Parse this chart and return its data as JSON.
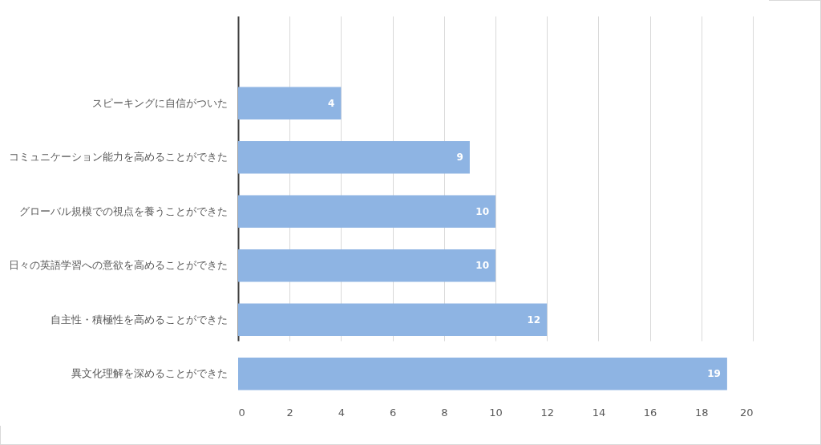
{
  "chart_data": {
    "type": "bar",
    "orientation": "horizontal",
    "categories": [
      "スピーキングに自信がついた",
      "コミュニケーション能力を高めることができた",
      "グローバル規模での視点を養うことができた",
      "日々の英語学習への意欲を高めることができた",
      "自主性・積極性を高めることができた",
      "異文化理解を深めることができた"
    ],
    "values": [
      4,
      9,
      10,
      10,
      12,
      19
    ],
    "color": "#8eb4e3",
    "xlim": [
      0,
      20
    ],
    "xticks": [
      0,
      2,
      4,
      6,
      8,
      10,
      12,
      14,
      16,
      18,
      20
    ],
    "grid": "x",
    "data_labels": true
  }
}
